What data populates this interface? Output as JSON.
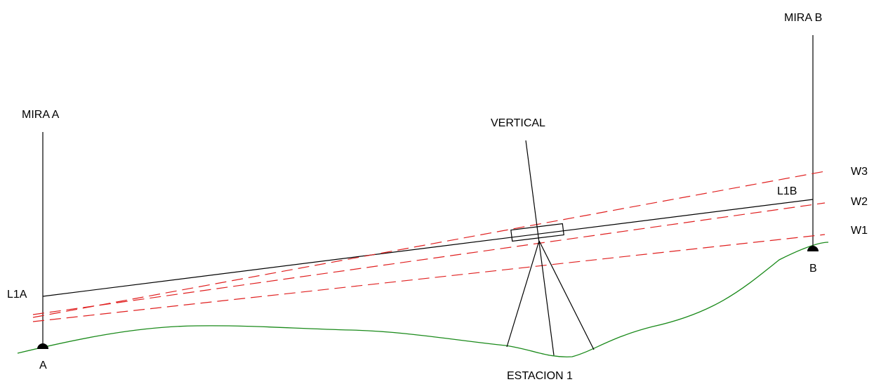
{
  "labels": {
    "mira_a": "MIRA A",
    "mira_b": "MIRA B",
    "vertical": "VERTICAL",
    "l1a": "L1A",
    "l1b": "L1B",
    "w1": "W1",
    "w2": "W2",
    "w3": "W3",
    "point_a": "A",
    "point_b": "B",
    "station": "ESTACION 1"
  },
  "colors": {
    "lines": "#000000",
    "dashed_sight_lines": "#e02020",
    "terrain": "#1a8a1a"
  }
}
